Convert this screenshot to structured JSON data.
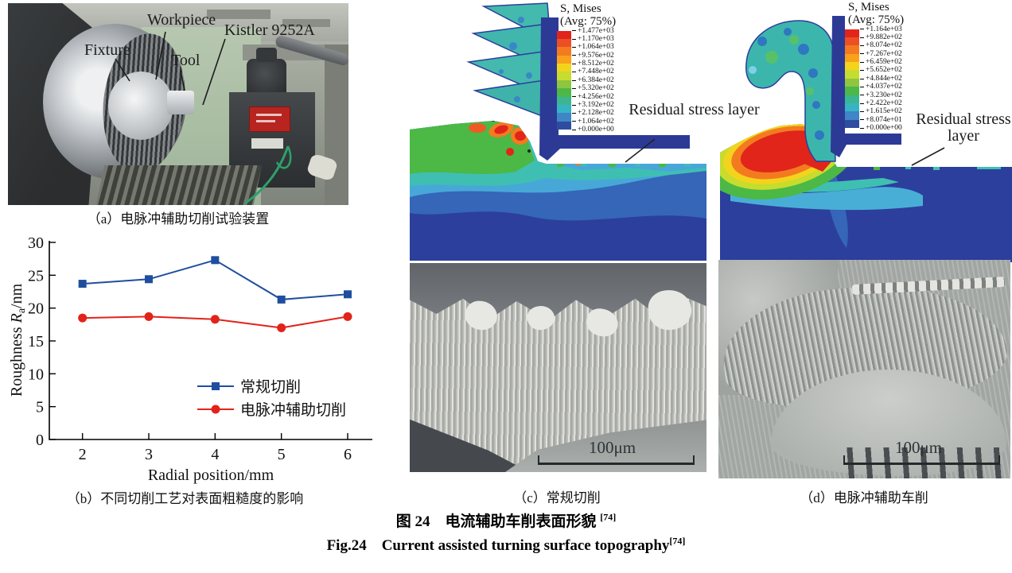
{
  "panel_a": {
    "caption": "（a）电脉冲辅助切削试验装置",
    "labels": {
      "fixture": "Fixture",
      "workpiece": "Workpiece",
      "tool": "Tool",
      "sensor": "Kistler 9252A"
    }
  },
  "chart_data": {
    "type": "line",
    "title": "",
    "xlabel": "Radial position/mm",
    "ylabel": "Roughness Ra/nm",
    "ylabel_parts": {
      "prefix": "Roughness ",
      "symbol": "R",
      "sub": "a",
      "suffix": "/nm"
    },
    "x": [
      2,
      3,
      4,
      5,
      6
    ],
    "xticks": [
      2,
      3,
      4,
      5,
      6
    ],
    "yticks": [
      0,
      5,
      10,
      15,
      20,
      25,
      30
    ],
    "xlim": [
      1.5,
      6.3
    ],
    "ylim": [
      0,
      30
    ],
    "grid": false,
    "legend_position": "inside lower right",
    "series": [
      {
        "name": "常规切削",
        "marker": "square",
        "color": "#1f4e9f",
        "values": [
          23.7,
          24.4,
          27.3,
          21.3,
          22.1
        ]
      },
      {
        "name": "电脉冲辅助切削",
        "marker": "circle",
        "color": "#e2231a",
        "values": [
          18.5,
          18.7,
          18.3,
          17.0,
          18.7
        ]
      }
    ],
    "caption": "（b）不同切削工艺对表面粗糙度的影响"
  },
  "panel_c": {
    "fem": {
      "legend_title": "S, Mises",
      "legend_subtitle": "(Avg: 75%)",
      "legend_values": [
        "+1.477e+03",
        "+1.170e+03",
        "+1.064e+03",
        "+9.576e+02",
        "+8.512e+02",
        "+7.448e+02",
        "+6.384e+02",
        "+5.320e+02",
        "+4.256e+02",
        "+3.192e+02",
        "+2.128e+02",
        "+1.064e+02",
        "+0.000e+00"
      ],
      "annotation": "Residual stress layer"
    },
    "sem": {
      "scale_label": "100μm"
    },
    "caption": "（c）常规切削"
  },
  "panel_d": {
    "fem": {
      "legend_title": "S, Mises",
      "legend_subtitle": "(Avg: 75%)",
      "legend_values": [
        "+1.164e+03",
        "+9.882e+02",
        "+8.074e+02",
        "+7.267e+02",
        "+6.459e+02",
        "+5.652e+02",
        "+4.844e+02",
        "+4.037e+02",
        "+3.230e+02",
        "+2.422e+02",
        "+1.615e+02",
        "+8.074e+01",
        "+0.000e+00"
      ],
      "annotation": "Residual stress layer"
    },
    "sem": {
      "scale_label": "100μm"
    },
    "caption": "（d）电脉冲辅助车削"
  },
  "colorbar_colors": [
    "#e1251b",
    "#ec4f24",
    "#f47a20",
    "#f9a11b",
    "#f2d41d",
    "#c6dc2e",
    "#8ec63f",
    "#4db748",
    "#3cb690",
    "#37b4c4",
    "#3e86c6",
    "#2f4da0"
  ],
  "figure_caption": {
    "zh": "图 24　电流辅助车削表面形貌 ",
    "zh_ref": "[74]",
    "en": "Fig.24　Current assisted turning surface topography",
    "en_ref": "[74]"
  }
}
